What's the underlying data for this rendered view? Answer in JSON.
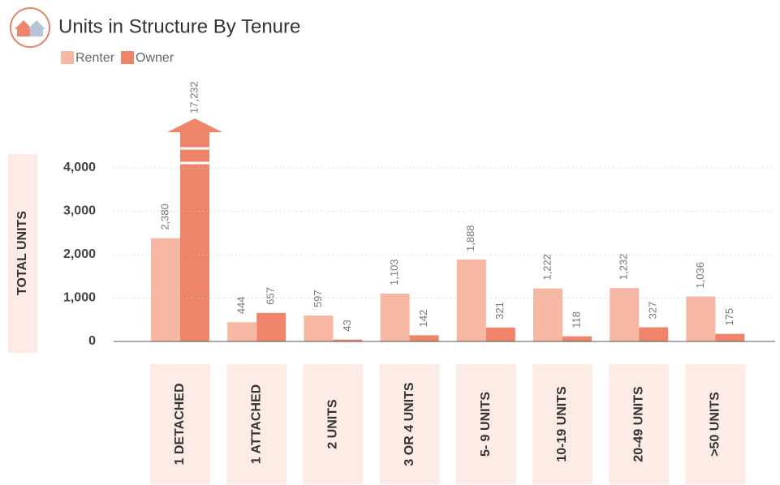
{
  "chart_data": {
    "type": "bar",
    "title": "Units in Structure By Tenure",
    "y_label": "TOTAL UNITS",
    "categories": [
      "1 DETACHED",
      "1 ATTACHED",
      "2 UNITS",
      "3 OR 4 UNITS",
      "5- 9 UNITS",
      "10-19 UNITS",
      "20-49 UNITS",
      ">50 UNITS"
    ],
    "series": [
      {
        "name": "Renter",
        "color": "#f7b8a3",
        "values": [
          2380,
          444,
          597,
          1103,
          1888,
          1222,
          1232,
          1036
        ],
        "value_labels": [
          "2,380",
          "444",
          "597",
          "1,103",
          "1,888",
          "1,222",
          "1,232",
          "1,036"
        ]
      },
      {
        "name": "Owner",
        "color": "#ee846a",
        "values": [
          17232,
          657,
          43,
          142,
          321,
          118,
          327,
          175
        ],
        "value_labels": [
          "17,232",
          "657",
          "43",
          "142",
          "321",
          "118",
          "327",
          "175"
        ]
      }
    ],
    "ylim": [
      0,
      4000
    ],
    "yticks": [
      0,
      {
        "value": 1000,
        "label": "1,000"
      },
      {
        "value": 2000,
        "label": "2,000"
      },
      {
        "value": 3000,
        "label": "3,000"
      },
      {
        "value": 4000,
        "label": "4,000"
      }
    ],
    "grid": true
  }
}
